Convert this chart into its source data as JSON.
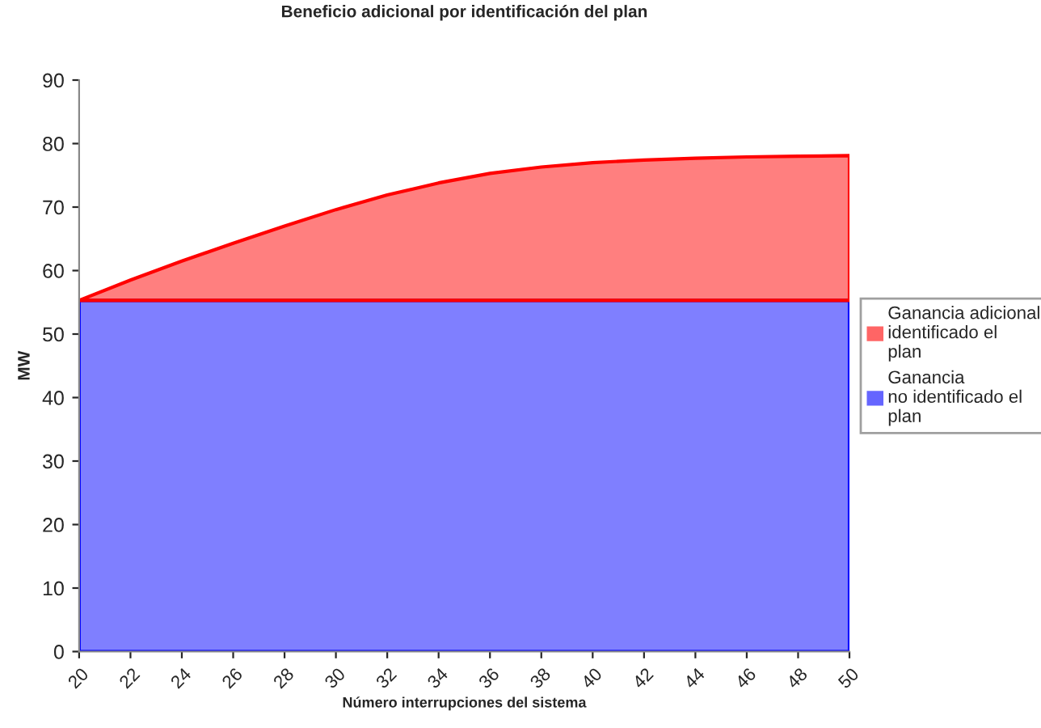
{
  "chart_data": {
    "type": "area",
    "title": "Beneficio adicional por identificación del plan",
    "xlabel": "Número interrupciones del sistema",
    "ylabel": "MW",
    "x": [
      20,
      22,
      24,
      26,
      28,
      30,
      32,
      34,
      36,
      38,
      40,
      42,
      44,
      46,
      48,
      50
    ],
    "stacked": true,
    "series": [
      {
        "name": "Ganancia\nno identificado el\nplan",
        "color": "#0000ff",
        "values": [
          55.3,
          55.3,
          55.3,
          55.3,
          55.3,
          55.3,
          55.3,
          55.3,
          55.3,
          55.3,
          55.3,
          55.3,
          55.3,
          55.3,
          55.3,
          55.3
        ]
      },
      {
        "name": "Ganancia adicional\nidentificado el\nplan",
        "color": "#ff0000",
        "values": [
          0,
          3.2,
          6.2,
          9.0,
          11.7,
          14.3,
          16.6,
          18.5,
          20.0,
          21.0,
          21.7,
          22.1,
          22.4,
          22.6,
          22.7,
          22.8
        ]
      }
    ],
    "xlim": [
      20,
      50
    ],
    "xticks": [
      20,
      22,
      24,
      26,
      28,
      30,
      32,
      34,
      36,
      38,
      40,
      42,
      44,
      46,
      48,
      50
    ],
    "ylim": [
      0,
      90
    ],
    "yticks": [
      0,
      10,
      20,
      30,
      40,
      50,
      60,
      70,
      80,
      90
    ],
    "grid": false,
    "legend": "right"
  }
}
